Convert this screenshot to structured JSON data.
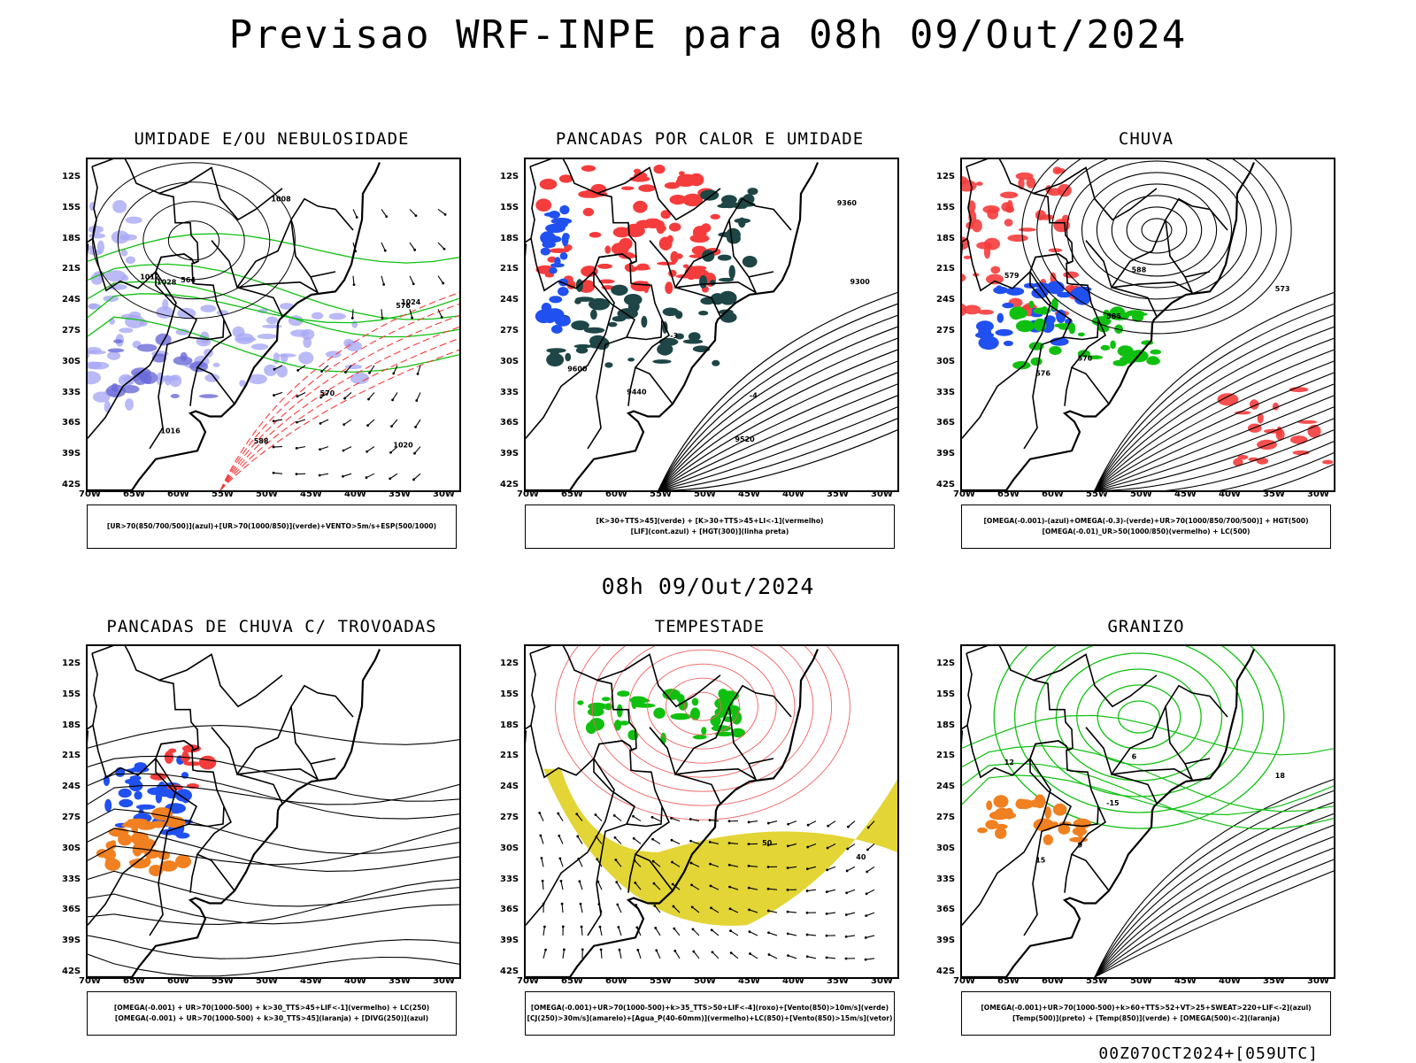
{
  "title": "Previsao WRF-INPE  para 08h 09/Out/2024",
  "mid_time": "08h 09/Out/2024",
  "run_info": "00Z07OCT2024+[059UTC]",
  "axes": {
    "lat_labels": [
      "12S",
      "15S",
      "18S",
      "21S",
      "24S",
      "27S",
      "30S",
      "33S",
      "36S",
      "39S",
      "42S"
    ],
    "lon_labels": [
      "70W",
      "65W",
      "60W",
      "55W",
      "50W",
      "45W",
      "40W",
      "35W",
      "30W"
    ]
  },
  "colors": {
    "humidity_blue": "#a9a9f5",
    "rain_red": "#f53c3c",
    "rain_green": "#10c010",
    "rain_blue": "#2050f0",
    "storm_dark": "#1e4646",
    "storm_yellow": "#e0d020",
    "hail_orange": "#f08020"
  },
  "panels": [
    {
      "title": "UMIDADE E/OU NEBULOSIDADE",
      "legend": [
        "[UR>70(850/700/500)](azul)+[UR>70(1000/850)](verde)+VENTO>5m/s+ESP(500/1000)"
      ],
      "contour_labels": [
        "1012",
        "1016",
        "1008",
        "1020",
        "1024",
        "1028",
        "576",
        "570",
        "564",
        "588"
      ]
    },
    {
      "title": "PANCADAS POR CALOR E UMIDADE",
      "legend": [
        "[K>30+TTS>45](verde) + [K>30+TTS>45+LI<-1](vermelho)",
        "[LIF](cont.azul) + [HGT(300)](linha preta)"
      ],
      "contour_labels": [
        "9600",
        "9520",
        "9440",
        "9360",
        "9300",
        "-3",
        "-4"
      ]
    },
    {
      "title": "CHUVA",
      "legend": [
        "[OMEGA(-0.001)-(azul)+OMEGA(-0.3)-(verde)+UR>70(1000/850/700/500)] + HGT(500)",
        "[OMEGA(-0.01)_UR>50(1000/850)(vermelho) + LC(500)"
      ],
      "contour_labels": [
        "585",
        "579",
        "576",
        "573",
        "570",
        "588"
      ]
    },
    {
      "title": "PANCADAS DE CHUVA C/ TROVOADAS",
      "legend": [
        "[OMEGA(-0.001) + UR>70(1000-500) + k>30_TTS>45+LIF<-1](vermelho) + LC(250)",
        "[OMEGA(-0.001) + UR>70(1000-500) + k>30_TTS>45](laranja) + [DIVG(250)](azul)"
      ],
      "contour_labels": []
    },
    {
      "title": "TEMPESTADE",
      "legend": [
        "[OMEGA(-0.001)+UR>70(1000-500)+k>35_TTS>50+LIF<-4](roxo)+[Vento(850)>10m/s](verde)",
        "[CJ(250)>30m/s](amarelo)+[Agua_P(40-60mm)](vermelho)+LC(850)+[Vento(850)>15m/s](vetor)"
      ],
      "contour_labels": [
        "50",
        "40"
      ]
    },
    {
      "title": "GRANIZO",
      "legend": [
        "[OMEGA(-0.001)+UR>70(1000-500)+k>60+TTS>52+VT>25+SWEAT>220+LIF<-2](azul)",
        "[Temp(500)](preto) + [Temp(850)](verde) + [OMEGA(500)<-2](laranja)"
      ],
      "contour_labels": [
        "-15",
        "12",
        "15",
        "18",
        "9",
        "6"
      ]
    }
  ]
}
